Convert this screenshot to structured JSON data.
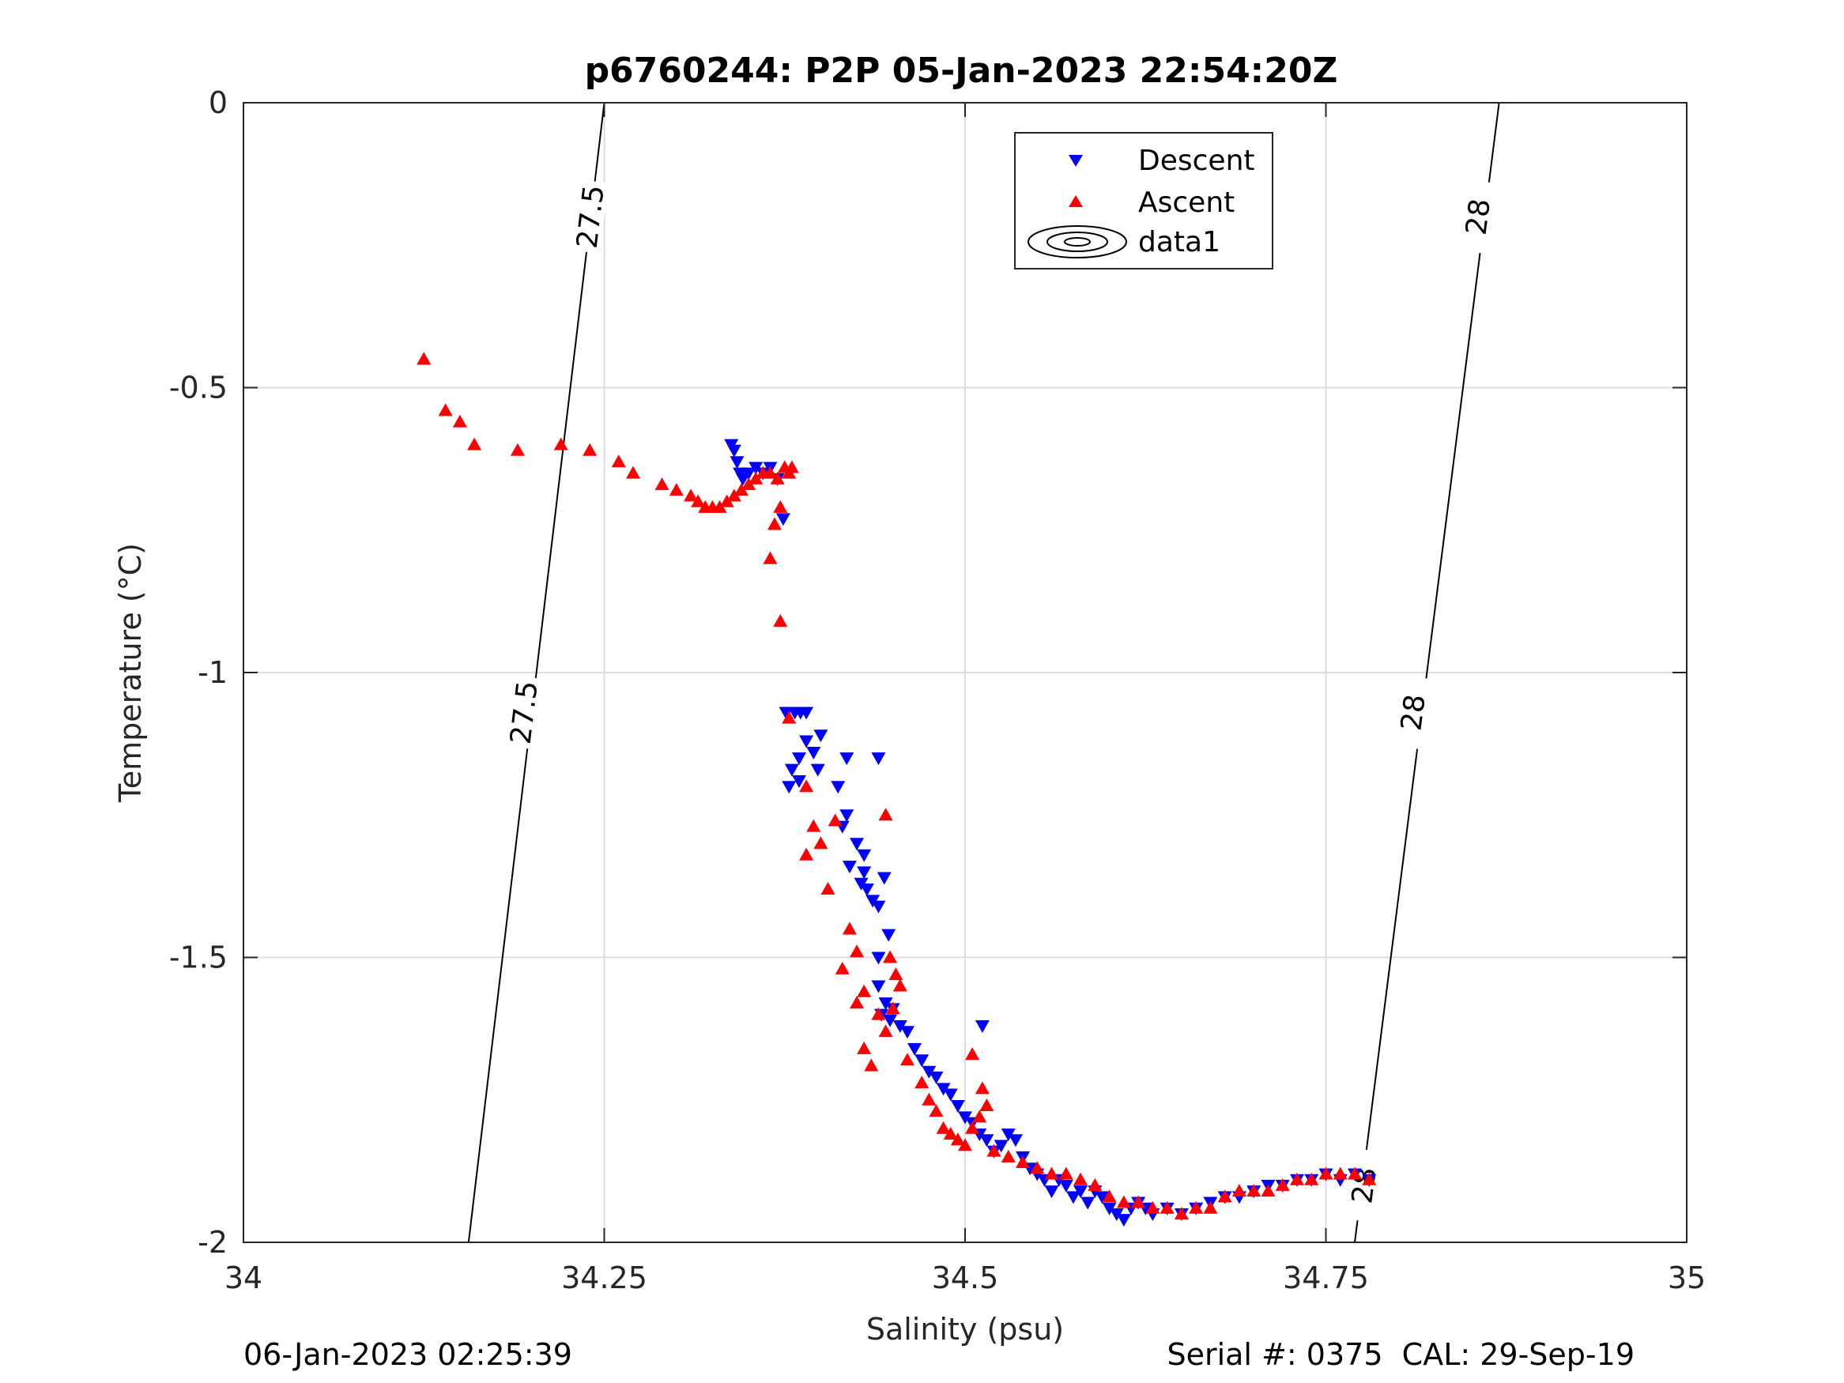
{
  "chart_data": {
    "type": "scatter",
    "title": "p6760244: P2P 05-Jan-2023 22:54:20Z",
    "xlabel": "Salinity (psu)",
    "ylabel": "Temperature (°C)",
    "xlim": [
      34,
      35
    ],
    "ylim": [
      -2,
      0
    ],
    "xticks": [
      34,
      34.25,
      34.5,
      34.75,
      35
    ],
    "xtick_labels": [
      "34",
      "34.25",
      "34.5",
      "34.75",
      "35"
    ],
    "yticks": [
      0,
      -0.5,
      -1,
      -1.5,
      -2
    ],
    "ytick_labels": [
      "0",
      "-0.5",
      "-1",
      "-1.5",
      "-2"
    ],
    "grid": true,
    "legend_position": "top-right",
    "legend": [
      "Descent",
      "Ascent",
      "data1"
    ],
    "contours": [
      {
        "level": "27.5",
        "line": [
          [
            34.156,
            -2
          ],
          [
            34.25,
            0
          ]
        ],
        "labels": [
          [
            34.24,
            -0.2
          ],
          [
            34.194,
            -1.07
          ]
        ]
      },
      {
        "level": "28",
        "line": [
          [
            34.77,
            -2
          ],
          [
            34.87,
            0
          ]
        ],
        "labels": [
          [
            34.855,
            -0.2
          ],
          [
            34.81,
            -1.07
          ],
          [
            34.776,
            -1.9
          ]
        ]
      }
    ],
    "series": [
      {
        "name": "Descent",
        "marker": "triangle-down",
        "color": "#0000ff",
        "points": [
          [
            34.338,
            -0.6
          ],
          [
            34.34,
            -0.61
          ],
          [
            34.342,
            -0.63
          ],
          [
            34.344,
            -0.65
          ],
          [
            34.346,
            -0.66
          ],
          [
            34.35,
            -0.65
          ],
          [
            34.355,
            -0.64
          ],
          [
            34.36,
            -0.65
          ],
          [
            34.365,
            -0.64
          ],
          [
            34.37,
            -0.66
          ],
          [
            34.374,
            -0.73
          ],
          [
            34.376,
            -1.07
          ],
          [
            34.382,
            -1.07
          ],
          [
            34.386,
            -1.07
          ],
          [
            34.39,
            -1.07
          ],
          [
            34.39,
            -1.12
          ],
          [
            34.395,
            -1.14
          ],
          [
            34.4,
            -1.11
          ],
          [
            34.398,
            -1.17
          ],
          [
            34.385,
            -1.15
          ],
          [
            34.38,
            -1.17
          ],
          [
            34.378,
            -1.2
          ],
          [
            34.385,
            -1.19
          ],
          [
            34.412,
            -1.2
          ],
          [
            34.418,
            -1.15
          ],
          [
            34.44,
            -1.15
          ],
          [
            34.418,
            -1.25
          ],
          [
            34.415,
            -1.27
          ],
          [
            34.425,
            -1.3
          ],
          [
            34.43,
            -1.32
          ],
          [
            34.42,
            -1.34
          ],
          [
            34.43,
            -1.35
          ],
          [
            34.428,
            -1.37
          ],
          [
            34.432,
            -1.38
          ],
          [
            34.436,
            -1.4
          ],
          [
            34.44,
            -1.41
          ],
          [
            34.444,
            -1.36
          ],
          [
            34.447,
            -1.46
          ],
          [
            34.44,
            -1.5
          ],
          [
            34.44,
            -1.55
          ],
          [
            34.445,
            -1.58
          ],
          [
            34.45,
            -1.59
          ],
          [
            34.442,
            -1.6
          ],
          [
            34.448,
            -1.61
          ],
          [
            34.455,
            -1.62
          ],
          [
            34.46,
            -1.63
          ],
          [
            34.465,
            -1.66
          ],
          [
            34.47,
            -1.68
          ],
          [
            34.475,
            -1.7
          ],
          [
            34.48,
            -1.71
          ],
          [
            34.485,
            -1.73
          ],
          [
            34.49,
            -1.74
          ],
          [
            34.495,
            -1.76
          ],
          [
            34.5,
            -1.78
          ],
          [
            34.505,
            -1.79
          ],
          [
            34.51,
            -1.81
          ],
          [
            34.512,
            -1.62
          ],
          [
            34.515,
            -1.82
          ],
          [
            34.52,
            -1.84
          ],
          [
            34.525,
            -1.83
          ],
          [
            34.53,
            -1.81
          ],
          [
            34.535,
            -1.82
          ],
          [
            34.54,
            -1.85
          ],
          [
            34.545,
            -1.87
          ],
          [
            34.55,
            -1.88
          ],
          [
            34.555,
            -1.89
          ],
          [
            34.56,
            -1.91
          ],
          [
            34.565,
            -1.89
          ],
          [
            34.57,
            -1.9
          ],
          [
            34.575,
            -1.92
          ],
          [
            34.58,
            -1.91
          ],
          [
            34.585,
            -1.93
          ],
          [
            34.59,
            -1.91
          ],
          [
            34.595,
            -1.92
          ],
          [
            34.6,
            -1.94
          ],
          [
            34.605,
            -1.95
          ],
          [
            34.61,
            -1.96
          ],
          [
            34.615,
            -1.94
          ],
          [
            34.62,
            -1.93
          ],
          [
            34.625,
            -1.94
          ],
          [
            34.63,
            -1.95
          ],
          [
            34.64,
            -1.94
          ],
          [
            34.65,
            -1.95
          ],
          [
            34.66,
            -1.94
          ],
          [
            34.67,
            -1.93
          ],
          [
            34.68,
            -1.92
          ],
          [
            34.69,
            -1.92
          ],
          [
            34.7,
            -1.91
          ],
          [
            34.71,
            -1.9
          ],
          [
            34.72,
            -1.9
          ],
          [
            34.73,
            -1.89
          ],
          [
            34.74,
            -1.89
          ],
          [
            34.75,
            -1.88
          ],
          [
            34.76,
            -1.89
          ],
          [
            34.77,
            -1.88
          ],
          [
            34.78,
            -1.89
          ]
        ]
      },
      {
        "name": "Ascent",
        "marker": "triangle-up",
        "color": "#ff0000",
        "points": [
          [
            34.125,
            -0.45
          ],
          [
            34.125,
            -0.45
          ],
          [
            34.14,
            -0.54
          ],
          [
            34.15,
            -0.56
          ],
          [
            34.16,
            -0.6
          ],
          [
            34.19,
            -0.61
          ],
          [
            34.22,
            -0.6
          ],
          [
            34.24,
            -0.61
          ],
          [
            34.26,
            -0.63
          ],
          [
            34.27,
            -0.65
          ],
          [
            34.29,
            -0.67
          ],
          [
            34.3,
            -0.68
          ],
          [
            34.31,
            -0.69
          ],
          [
            34.315,
            -0.7
          ],
          [
            34.32,
            -0.71
          ],
          [
            34.325,
            -0.71
          ],
          [
            34.33,
            -0.71
          ],
          [
            34.335,
            -0.7
          ],
          [
            34.34,
            -0.69
          ],
          [
            34.345,
            -0.68
          ],
          [
            34.35,
            -0.67
          ],
          [
            34.355,
            -0.66
          ],
          [
            34.36,
            -0.65
          ],
          [
            34.365,
            -0.65
          ],
          [
            34.37,
            -0.66
          ],
          [
            34.375,
            -0.64
          ],
          [
            34.378,
            -0.65
          ],
          [
            34.38,
            -0.64
          ],
          [
            34.372,
            -0.71
          ],
          [
            34.368,
            -0.74
          ],
          [
            34.365,
            -0.8
          ],
          [
            34.372,
            -0.91
          ],
          [
            34.378,
            -1.08
          ],
          [
            34.39,
            -1.2
          ],
          [
            34.395,
            -1.27
          ],
          [
            34.4,
            -1.3
          ],
          [
            34.39,
            -1.32
          ],
          [
            34.41,
            -1.26
          ],
          [
            34.445,
            -1.25
          ],
          [
            34.405,
            -1.38
          ],
          [
            34.42,
            -1.45
          ],
          [
            34.425,
            -1.49
          ],
          [
            34.415,
            -1.52
          ],
          [
            34.43,
            -1.56
          ],
          [
            34.425,
            -1.58
          ],
          [
            34.44,
            -1.6
          ],
          [
            34.448,
            -1.5
          ],
          [
            34.452,
            -1.53
          ],
          [
            34.455,
            -1.55
          ],
          [
            34.45,
            -1.59
          ],
          [
            34.445,
            -1.63
          ],
          [
            34.43,
            -1.66
          ],
          [
            34.435,
            -1.69
          ],
          [
            34.46,
            -1.68
          ],
          [
            34.47,
            -1.72
          ],
          [
            34.475,
            -1.75
          ],
          [
            34.48,
            -1.77
          ],
          [
            34.485,
            -1.8
          ],
          [
            34.49,
            -1.81
          ],
          [
            34.495,
            -1.82
          ],
          [
            34.5,
            -1.83
          ],
          [
            34.505,
            -1.8
          ],
          [
            34.51,
            -1.78
          ],
          [
            34.512,
            -1.73
          ],
          [
            34.515,
            -1.76
          ],
          [
            34.505,
            -1.67
          ],
          [
            34.52,
            -1.84
          ],
          [
            34.53,
            -1.85
          ],
          [
            34.54,
            -1.86
          ],
          [
            34.55,
            -1.87
          ],
          [
            34.56,
            -1.88
          ],
          [
            34.57,
            -1.88
          ],
          [
            34.58,
            -1.89
          ],
          [
            34.59,
            -1.9
          ],
          [
            34.6,
            -1.92
          ],
          [
            34.61,
            -1.93
          ],
          [
            34.62,
            -1.93
          ],
          [
            34.63,
            -1.94
          ],
          [
            34.64,
            -1.94
          ],
          [
            34.65,
            -1.95
          ],
          [
            34.66,
            -1.94
          ],
          [
            34.67,
            -1.94
          ],
          [
            34.68,
            -1.92
          ],
          [
            34.69,
            -1.91
          ],
          [
            34.7,
            -1.91
          ],
          [
            34.71,
            -1.91
          ],
          [
            34.72,
            -1.9
          ],
          [
            34.73,
            -1.89
          ],
          [
            34.74,
            -1.89
          ],
          [
            34.75,
            -1.88
          ],
          [
            34.76,
            -1.88
          ],
          [
            34.77,
            -1.88
          ],
          [
            34.78,
            -1.89
          ]
        ]
      }
    ]
  },
  "footer": {
    "left": "06-Jan-2023 02:25:39",
    "right": "Serial #: 0375  CAL: 29-Sep-19"
  }
}
